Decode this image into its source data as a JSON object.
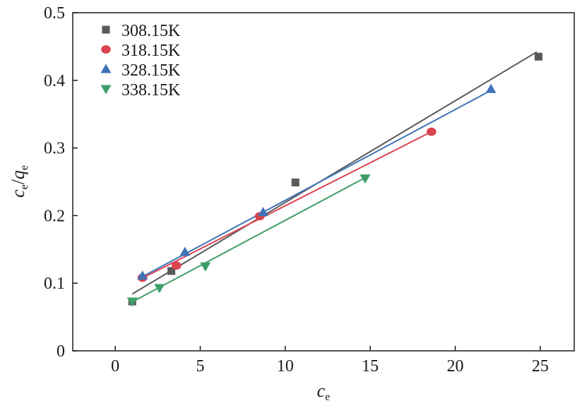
{
  "chart_data": {
    "type": "scatter",
    "title": "",
    "xlabel": {
      "main": "c",
      "sub": "e"
    },
    "ylabel": {
      "main1": "c",
      "sub1": "e",
      "slash": "/",
      "main2": "q",
      "sub2": "e"
    },
    "xlim": [
      -2.5,
      27
    ],
    "ylim": [
      0,
      0.5
    ],
    "xticks": [
      0,
      5,
      10,
      15,
      20,
      25
    ],
    "yticks": [
      0,
      0.1,
      0.2,
      0.3,
      0.4,
      0.5
    ],
    "xtick_labels": [
      "0",
      "5",
      "10",
      "15",
      "20",
      "25"
    ],
    "ytick_labels": [
      "0",
      "0.1",
      "0.2",
      "0.3",
      "0.4",
      "0.5"
    ],
    "grid": false,
    "legend_position": "top-left",
    "series": [
      {
        "name": "308.15K",
        "marker": "square",
        "color": "#5a5a5a",
        "x": [
          1.0,
          3.3,
          10.6,
          24.9
        ],
        "y": [
          0.073,
          0.118,
          0.249,
          0.435
        ],
        "fit": {
          "x": [
            1.0,
            24.8
          ],
          "y": [
            0.084,
            0.442
          ]
        }
      },
      {
        "name": "318.15K",
        "marker": "circle",
        "color": "#d94450",
        "x": [
          1.6,
          3.6,
          8.5,
          18.6
        ],
        "y": [
          0.108,
          0.126,
          0.199,
          0.324
        ],
        "fit": {
          "x": [
            1.4,
            18.6
          ],
          "y": [
            0.105,
            0.324
          ]
        }
      },
      {
        "name": "328.15K",
        "marker": "triangle-up",
        "color": "#3f73b8",
        "x": [
          1.6,
          4.1,
          8.7,
          22.1
        ],
        "y": [
          0.111,
          0.146,
          0.205,
          0.387
        ],
        "fit": {
          "x": [
            1.4,
            22.1
          ],
          "y": [
            0.107,
            0.385
          ]
        }
      },
      {
        "name": "338.15K",
        "marker": "triangle-down",
        "color": "#3f9e68",
        "x": [
          1.0,
          2.6,
          5.3,
          14.7
        ],
        "y": [
          0.073,
          0.093,
          0.125,
          0.255
        ],
        "fit": {
          "x": [
            0.9,
            14.7
          ],
          "y": [
            0.071,
            0.256
          ]
        }
      }
    ]
  }
}
